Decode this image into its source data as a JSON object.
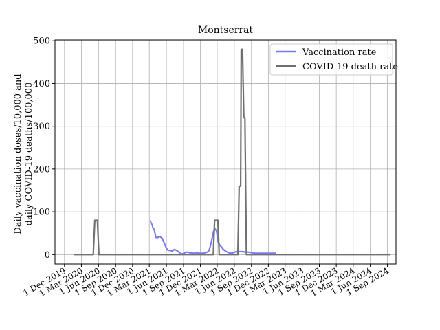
{
  "chart_data": {
    "type": "line",
    "title": "Montserrat",
    "ylabel_lines": [
      "Daily vaccination doses/10,000 and",
      "daily COVID-19 deaths/100,000"
    ],
    "xlabel": "",
    "xlim": [
      "2019-10-11",
      "2024-10-17"
    ],
    "ylim": [
      -22,
      502
    ],
    "yticks": [
      0,
      100,
      200,
      300,
      400,
      500
    ],
    "xticks": [
      {
        "date": "2019-12-01",
        "label": "1 Dec 2019"
      },
      {
        "date": "2020-03-01",
        "label": "1 Mar 2020"
      },
      {
        "date": "2020-06-01",
        "label": "1 Jun 2020"
      },
      {
        "date": "2020-09-01",
        "label": "1 Sep 2020"
      },
      {
        "date": "2020-12-01",
        "label": "1 Dec 2020"
      },
      {
        "date": "2021-03-01",
        "label": "1 Mar 2021"
      },
      {
        "date": "2021-06-01",
        "label": "1 Jun 2021"
      },
      {
        "date": "2021-09-01",
        "label": "1 Sep 2021"
      },
      {
        "date": "2021-12-01",
        "label": "1 Dec 2021"
      },
      {
        "date": "2022-03-01",
        "label": "1 Mar 2022"
      },
      {
        "date": "2022-06-01",
        "label": "1 Jun 2022"
      },
      {
        "date": "2022-09-01",
        "label": "1 Sep 2022"
      },
      {
        "date": "2022-12-01",
        "label": "1 Dec 2022"
      },
      {
        "date": "2023-03-01",
        "label": "1 Mar 2023"
      },
      {
        "date": "2023-06-01",
        "label": "1 Jun 2023"
      },
      {
        "date": "2023-09-01",
        "label": "1 Sep 2023"
      },
      {
        "date": "2023-12-01",
        "label": "1 Dec 2023"
      },
      {
        "date": "2024-03-01",
        "label": "1 Mar 2024"
      },
      {
        "date": "2024-06-01",
        "label": "1 Jun 2024"
      },
      {
        "date": "2024-09-01",
        "label": "1 Sep 2024"
      }
    ],
    "grid": true,
    "legend_position": "top-right",
    "series": [
      {
        "name": "Vaccination rate",
        "color": "#7b7bf0",
        "points": [
          [
            "2021-03-07",
            80
          ],
          [
            "2021-03-11",
            72
          ],
          [
            "2021-03-17",
            70
          ],
          [
            "2021-03-20",
            63
          ],
          [
            "2021-03-28",
            58
          ],
          [
            "2021-04-05",
            40
          ],
          [
            "2021-04-15",
            40
          ],
          [
            "2021-04-28",
            42
          ],
          [
            "2021-05-09",
            38
          ],
          [
            "2021-05-22",
            25
          ],
          [
            "2021-06-01",
            15
          ],
          [
            "2021-06-10",
            10
          ],
          [
            "2021-06-22",
            10
          ],
          [
            "2021-07-02",
            8
          ],
          [
            "2021-07-14",
            12
          ],
          [
            "2021-07-25",
            10
          ],
          [
            "2021-08-07",
            6
          ],
          [
            "2021-08-20",
            1
          ],
          [
            "2021-09-03",
            3
          ],
          [
            "2021-09-16",
            6
          ],
          [
            "2021-09-27",
            5
          ],
          [
            "2021-10-10",
            4
          ],
          [
            "2021-10-25",
            3
          ],
          [
            "2021-11-06",
            4
          ],
          [
            "2021-11-16",
            4
          ],
          [
            "2021-11-29",
            3
          ],
          [
            "2021-12-13",
            3
          ],
          [
            "2021-12-24",
            4
          ],
          [
            "2022-01-08",
            6
          ],
          [
            "2022-01-17",
            10
          ],
          [
            "2022-01-29",
            30
          ],
          [
            "2022-02-10",
            55
          ],
          [
            "2022-02-18",
            60
          ],
          [
            "2022-02-26",
            55
          ],
          [
            "2022-03-06",
            30
          ],
          [
            "2022-03-15",
            22
          ],
          [
            "2022-03-24",
            18
          ],
          [
            "2022-04-03",
            12
          ],
          [
            "2022-04-15",
            8
          ],
          [
            "2022-04-28",
            5
          ],
          [
            "2022-05-10",
            3
          ],
          [
            "2022-05-24",
            4
          ],
          [
            "2022-06-05",
            6
          ],
          [
            "2022-06-18",
            7
          ],
          [
            "2022-07-01",
            7
          ],
          [
            "2022-07-15",
            7
          ],
          [
            "2022-07-29",
            6
          ],
          [
            "2022-08-12",
            6
          ],
          [
            "2022-08-26",
            5
          ],
          [
            "2022-09-10",
            4
          ],
          [
            "2022-09-24",
            3
          ],
          [
            "2022-10-08",
            3
          ],
          [
            "2022-10-22",
            3
          ],
          [
            "2022-11-05",
            3
          ],
          [
            "2022-11-19",
            3
          ],
          [
            "2022-12-03",
            3
          ],
          [
            "2022-12-17",
            3
          ],
          [
            "2023-01-02",
            3
          ],
          [
            "2023-01-12",
            3
          ]
        ]
      },
      {
        "name": "COVID-19 death rate",
        "color": "#707070",
        "points": [
          [
            "2020-01-22",
            0
          ],
          [
            "2020-05-04",
            0
          ],
          [
            "2020-05-12",
            80
          ],
          [
            "2020-05-26",
            80
          ],
          [
            "2020-06-03",
            0
          ],
          [
            "2022-02-08",
            0
          ],
          [
            "2022-02-15",
            80
          ],
          [
            "2022-03-05",
            80
          ],
          [
            "2022-03-12",
            0
          ],
          [
            "2022-06-20",
            0
          ],
          [
            "2022-06-27",
            160
          ],
          [
            "2022-07-05",
            160
          ],
          [
            "2022-07-08",
            480
          ],
          [
            "2022-07-15",
            480
          ],
          [
            "2022-07-22",
            320
          ],
          [
            "2022-07-28",
            320
          ],
          [
            "2022-08-05",
            0
          ],
          [
            "2024-09-18",
            0
          ]
        ]
      }
    ]
  }
}
